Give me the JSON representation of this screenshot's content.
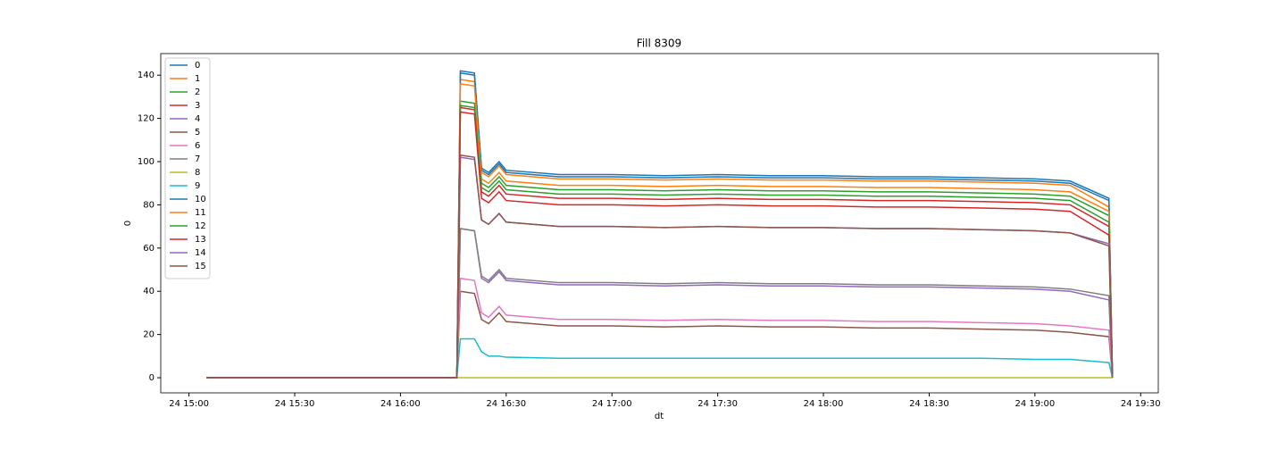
{
  "chart_data": {
    "type": "line",
    "title": "Fill 8309",
    "x_label": "dt",
    "y_label": "0",
    "x": [
      "24 15:05",
      "24 16:16",
      "24 16:17",
      "24 16:21",
      "24 16:23",
      "24 16:25",
      "24 16:28",
      "24 16:30",
      "24 16:45",
      "24 17:00",
      "24 17:15",
      "24 17:30",
      "24 17:45",
      "24 18:00",
      "24 18:15",
      "24 18:30",
      "24 18:45",
      "24 19:00",
      "24 19:10",
      "24 19:21",
      "24 19:22"
    ],
    "xlim": [
      "24 14:52",
      "24 19:35"
    ],
    "xticks": [
      "24 15:00",
      "24 15:30",
      "24 16:00",
      "24 16:30",
      "24 17:00",
      "24 17:30",
      "24 18:00",
      "24 18:30",
      "24 19:00",
      "24 19:30"
    ],
    "ylim": [
      -7,
      150
    ],
    "yticks": [
      0,
      20,
      40,
      60,
      80,
      100,
      120,
      140
    ],
    "legend": "upper left",
    "series": [
      {
        "name": "0",
        "color": "#1f77b4",
        "values": [
          0,
          0,
          141,
          140,
          97,
          95,
          100,
          96,
          94,
          94,
          93.5,
          94,
          93.5,
          93.5,
          93,
          93,
          92.5,
          92,
          91,
          83,
          0
        ]
      },
      {
        "name": "1",
        "color": "#ff7f0e",
        "values": [
          0,
          0,
          138,
          137,
          95,
          93,
          98,
          94,
          92,
          92,
          91.5,
          92,
          91.5,
          91.5,
          91,
          91,
          90.5,
          90,
          89,
          79,
          0
        ]
      },
      {
        "name": "2",
        "color": "#2ca02c",
        "values": [
          0,
          0,
          128,
          127,
          90,
          88,
          93,
          89,
          87,
          87,
          86.5,
          87,
          86.5,
          86.5,
          86,
          86,
          85.5,
          85,
          84,
          75,
          0
        ]
      },
      {
        "name": "3",
        "color": "#d62728",
        "values": [
          0,
          0,
          125,
          124,
          86,
          84,
          89,
          85,
          83,
          83,
          82.5,
          83,
          82.5,
          82.5,
          82,
          82,
          81.5,
          81,
          80,
          70,
          0
        ]
      },
      {
        "name": "4",
        "color": "#9467bd",
        "values": [
          0,
          0,
          69,
          68,
          46,
          44,
          49,
          45,
          43,
          43,
          42.5,
          43,
          42.5,
          42.5,
          42,
          42,
          41.5,
          41,
          40,
          36,
          0
        ]
      },
      {
        "name": "5",
        "color": "#8c564b",
        "values": [
          0,
          0,
          40,
          39,
          27,
          25,
          30,
          26,
          24,
          24,
          23.5,
          24,
          23.5,
          23.5,
          23,
          23,
          22.5,
          22,
          21,
          19,
          0
        ]
      },
      {
        "name": "6",
        "color": "#e377c2",
        "values": [
          0,
          0,
          46,
          45,
          30,
          28,
          33,
          29,
          27,
          27,
          26.5,
          27,
          26.5,
          26.5,
          26,
          26,
          25.5,
          25,
          24,
          22,
          0
        ]
      },
      {
        "name": "7",
        "color": "#7f7f7f",
        "values": [
          0,
          0,
          69,
          68,
          47,
          45,
          50,
          46,
          44,
          44,
          43.5,
          44,
          43.5,
          43.5,
          43,
          43,
          42.5,
          42,
          41,
          38,
          0
        ]
      },
      {
        "name": "8",
        "color": "#bcbd22",
        "values": [
          0,
          0,
          0,
          0,
          0,
          0,
          0,
          0,
          0,
          0,
          0,
          0,
          0,
          0,
          0,
          0,
          0,
          0,
          0,
          0,
          0
        ]
      },
      {
        "name": "9",
        "color": "#17becf",
        "values": [
          0,
          0,
          18,
          18,
          12,
          10,
          10,
          9.5,
          9,
          9,
          9,
          9,
          9,
          9,
          9,
          9,
          9,
          8.5,
          8.5,
          7,
          0
        ]
      },
      {
        "name": "10",
        "color": "#1f77b4",
        "values": [
          0,
          0,
          142,
          141,
          96,
          94,
          99,
          95,
          93,
          93,
          92.5,
          93,
          92.5,
          92.5,
          92,
          92,
          91.5,
          91,
          90,
          82,
          0
        ]
      },
      {
        "name": "11",
        "color": "#ff7f0e",
        "values": [
          0,
          0,
          136,
          135,
          92,
          90,
          95,
          91,
          89,
          89,
          88.5,
          89,
          88.5,
          88.5,
          88,
          88,
          87.5,
          87,
          86,
          77,
          0
        ]
      },
      {
        "name": "12",
        "color": "#2ca02c",
        "values": [
          0,
          0,
          126,
          125,
          88,
          86,
          91,
          87,
          85,
          85,
          84.5,
          85,
          84.5,
          84.5,
          84,
          84,
          83.5,
          83,
          82,
          72,
          0
        ]
      },
      {
        "name": "13",
        "color": "#d62728",
        "values": [
          0,
          0,
          123,
          122,
          83,
          81,
          86,
          82,
          80,
          80,
          79.5,
          80,
          79.5,
          79.5,
          79,
          79,
          78.5,
          78,
          77,
          66,
          0
        ]
      },
      {
        "name": "14",
        "color": "#9467bd",
        "values": [
          0,
          0,
          102,
          101,
          73,
          71,
          76,
          72,
          70,
          70,
          69.5,
          70,
          69.5,
          69.5,
          69,
          69,
          68.5,
          68,
          67,
          62,
          0
        ]
      },
      {
        "name": "15",
        "color": "#8c564b",
        "values": [
          0,
          0,
          103,
          102,
          73,
          71,
          76,
          72,
          70,
          70,
          69.5,
          70,
          69.5,
          69.5,
          69,
          69,
          68.5,
          68,
          67,
          61,
          0
        ]
      }
    ]
  }
}
